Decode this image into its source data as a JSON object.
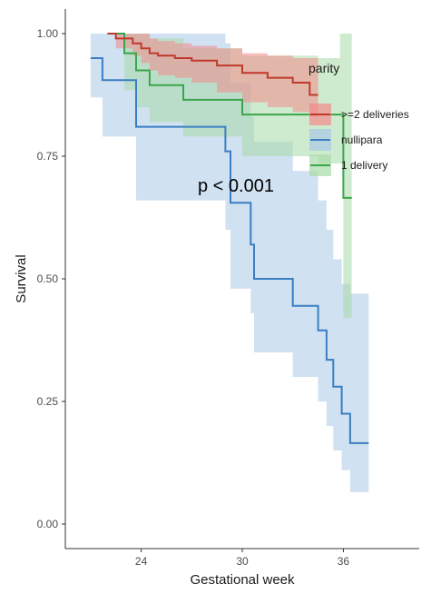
{
  "chart_data": {
    "type": "line",
    "step": true,
    "xlabel": "Gestational week",
    "ylabel": "Survival",
    "xlim": [
      19.5,
      40.5
    ],
    "ylim": [
      -0.05,
      1.05
    ],
    "x_ticks": [
      24,
      30,
      36
    ],
    "y_ticks": [
      0.0,
      0.25,
      0.5,
      0.75,
      1.0
    ],
    "y_tick_labels": [
      "0.00",
      "0.25",
      "0.50",
      "0.75",
      "1.00"
    ],
    "grid": false,
    "annotation": "p < 0.001",
    "legend": {
      "title": "parity",
      "position": "right",
      "entries": [
        ">=2 deliveries",
        "nullipara",
        "1 delivery"
      ]
    },
    "series": [
      {
        "name": ">=2 deliveries",
        "color": "#c0392b",
        "fill_color": "#f28a8a",
        "points": [
          [
            22.0,
            1.0
          ],
          [
            22.5,
            0.99
          ],
          [
            23.5,
            0.98
          ],
          [
            24.0,
            0.97
          ],
          [
            24.5,
            0.96
          ],
          [
            25.0,
            0.955
          ],
          [
            26.0,
            0.95
          ],
          [
            27.0,
            0.945
          ],
          [
            28.5,
            0.935
          ],
          [
            30.0,
            0.92
          ],
          [
            31.5,
            0.91
          ],
          [
            33.0,
            0.9
          ],
          [
            34.0,
            0.875
          ],
          [
            34.5,
            0.875
          ]
        ],
        "lower": [
          [
            22.0,
            1.0
          ],
          [
            22.5,
            0.97
          ],
          [
            23.5,
            0.955
          ],
          [
            24.0,
            0.94
          ],
          [
            24.5,
            0.925
          ],
          [
            25.0,
            0.915
          ],
          [
            26.0,
            0.91
          ],
          [
            27.0,
            0.9
          ],
          [
            28.5,
            0.88
          ],
          [
            30.0,
            0.86
          ],
          [
            31.5,
            0.85
          ],
          [
            33.0,
            0.84
          ],
          [
            34.0,
            0.83
          ],
          [
            34.5,
            0.83
          ]
        ],
        "upper": [
          [
            22.0,
            1.0
          ],
          [
            22.5,
            1.0
          ],
          [
            23.5,
            1.0
          ],
          [
            24.0,
            1.0
          ],
          [
            24.5,
            0.99
          ],
          [
            25.0,
            0.985
          ],
          [
            26.0,
            0.98
          ],
          [
            27.0,
            0.975
          ],
          [
            28.5,
            0.97
          ],
          [
            30.0,
            0.96
          ],
          [
            31.5,
            0.955
          ],
          [
            33.0,
            0.95
          ],
          [
            34.0,
            0.95
          ],
          [
            34.5,
            0.95
          ]
        ]
      },
      {
        "name": "nullipara",
        "color": "#3a7ec2",
        "fill_color": "#a9c8e6",
        "points": [
          [
            21.0,
            0.95
          ],
          [
            21.7,
            0.905
          ],
          [
            23.7,
            0.81
          ],
          [
            29.0,
            0.76
          ],
          [
            29.3,
            0.655
          ],
          [
            30.5,
            0.57
          ],
          [
            30.7,
            0.5
          ],
          [
            33.0,
            0.445
          ],
          [
            34.5,
            0.395
          ],
          [
            35.0,
            0.335
          ],
          [
            35.4,
            0.28
          ],
          [
            35.9,
            0.225
          ],
          [
            36.4,
            0.165
          ],
          [
            37.5,
            0.165
          ]
        ],
        "lower": [
          [
            21.0,
            0.87
          ],
          [
            21.7,
            0.79
          ],
          [
            23.7,
            0.66
          ],
          [
            29.0,
            0.6
          ],
          [
            29.3,
            0.48
          ],
          [
            30.5,
            0.43
          ],
          [
            30.7,
            0.35
          ],
          [
            33.0,
            0.3
          ],
          [
            34.5,
            0.25
          ],
          [
            35.0,
            0.2
          ],
          [
            35.4,
            0.15
          ],
          [
            35.9,
            0.11
          ],
          [
            36.4,
            0.065
          ],
          [
            37.5,
            0.065
          ]
        ],
        "upper": [
          [
            21.0,
            1.0
          ],
          [
            21.7,
            1.0
          ],
          [
            23.7,
            1.0
          ],
          [
            29.0,
            0.98
          ],
          [
            29.3,
            0.9
          ],
          [
            30.5,
            0.83
          ],
          [
            30.7,
            0.78
          ],
          [
            33.0,
            0.72
          ],
          [
            34.5,
            0.66
          ],
          [
            35.0,
            0.6
          ],
          [
            35.4,
            0.54
          ],
          [
            35.9,
            0.49
          ],
          [
            36.4,
            0.47
          ],
          [
            37.5,
            0.47
          ]
        ]
      },
      {
        "name": "1 delivery",
        "color": "#3aa64a",
        "fill_color": "#a8dba8",
        "points": [
          [
            22.3,
            1.0
          ],
          [
            23.0,
            0.96
          ],
          [
            23.7,
            0.925
          ],
          [
            24.5,
            0.895
          ],
          [
            26.5,
            0.865
          ],
          [
            30.0,
            0.835
          ],
          [
            34.5,
            0.835
          ],
          [
            35.8,
            0.835
          ],
          [
            36.0,
            0.665
          ],
          [
            36.5,
            0.665
          ]
        ],
        "lower": [
          [
            22.3,
            1.0
          ],
          [
            23.0,
            0.885
          ],
          [
            23.7,
            0.85
          ],
          [
            24.5,
            0.82
          ],
          [
            26.5,
            0.79
          ],
          [
            30.0,
            0.75
          ],
          [
            34.5,
            0.735
          ],
          [
            35.8,
            0.735
          ],
          [
            36.0,
            0.42
          ],
          [
            36.5,
            0.42
          ]
        ],
        "upper": [
          [
            22.3,
            1.0
          ],
          [
            23.0,
            1.0
          ],
          [
            23.7,
            1.0
          ],
          [
            24.5,
            0.99
          ],
          [
            26.5,
            0.97
          ],
          [
            30.0,
            0.955
          ],
          [
            34.5,
            0.95
          ],
          [
            35.8,
            1.0
          ],
          [
            36.0,
            1.0
          ],
          [
            36.5,
            1.0
          ]
        ]
      }
    ]
  }
}
